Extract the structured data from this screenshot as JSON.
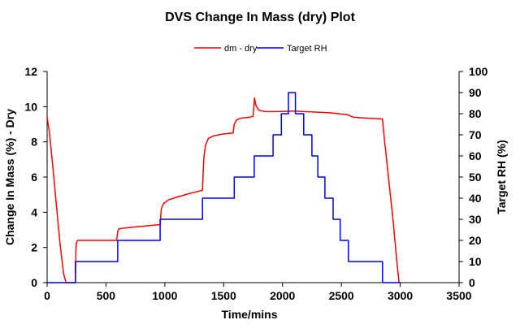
{
  "chart_data": {
    "type": "line",
    "title": "DVS Change In Mass (dry) Plot",
    "xlabel": "Time/mins",
    "ylabel_left": "Change In Mass (%) - Dry",
    "ylabel_right": "Target RH (%)",
    "xlim": [
      0,
      3500
    ],
    "ylim_left": [
      0,
      12
    ],
    "ylim_right": [
      0,
      100
    ],
    "x_ticks": [
      0,
      500,
      1000,
      1500,
      2000,
      2500,
      3000,
      3500
    ],
    "y_left_ticks": [
      0,
      2,
      4,
      6,
      8,
      10,
      12
    ],
    "y_right_ticks": [
      0,
      10,
      20,
      30,
      40,
      50,
      60,
      70,
      80,
      90,
      100
    ],
    "grid": false,
    "legend_position": "top-center",
    "series": [
      {
        "name": "dm - dry",
        "axis": "left",
        "color": "#ff0000",
        "points": [
          [
            0,
            9.4
          ],
          [
            20,
            8.5
          ],
          [
            50,
            6.5
          ],
          [
            80,
            4.3
          ],
          [
            110,
            2.2
          ],
          [
            140,
            0.5
          ],
          [
            160,
            0.0
          ],
          [
            240,
            0.0
          ],
          [
            245,
            1.9
          ],
          [
            250,
            2.3
          ],
          [
            260,
            2.4
          ],
          [
            400,
            2.4
          ],
          [
            590,
            2.4
          ],
          [
            600,
            2.9
          ],
          [
            610,
            3.05
          ],
          [
            650,
            3.1
          ],
          [
            800,
            3.2
          ],
          [
            960,
            3.3
          ],
          [
            970,
            4.2
          ],
          [
            990,
            4.5
          ],
          [
            1030,
            4.7
          ],
          [
            1100,
            4.85
          ],
          [
            1200,
            5.05
          ],
          [
            1320,
            5.25
          ],
          [
            1330,
            7.0
          ],
          [
            1345,
            7.8
          ],
          [
            1370,
            8.2
          ],
          [
            1420,
            8.35
          ],
          [
            1500,
            8.45
          ],
          [
            1580,
            8.5
          ],
          [
            1590,
            9.0
          ],
          [
            1610,
            9.25
          ],
          [
            1650,
            9.35
          ],
          [
            1720,
            9.4
          ],
          [
            1750,
            9.45
          ],
          [
            1762,
            10.5
          ],
          [
            1775,
            10.05
          ],
          [
            1800,
            9.8
          ],
          [
            1850,
            9.72
          ],
          [
            1950,
            9.72
          ],
          [
            2100,
            9.75
          ],
          [
            2250,
            9.7
          ],
          [
            2400,
            9.65
          ],
          [
            2550,
            9.55
          ],
          [
            2600,
            9.4
          ],
          [
            2700,
            9.35
          ],
          [
            2850,
            9.3
          ],
          [
            2860,
            8.5
          ],
          [
            2900,
            6.0
          ],
          [
            2940,
            3.5
          ],
          [
            2970,
            1.3
          ],
          [
            2990,
            0.0
          ],
          [
            3000,
            0.0
          ]
        ]
      },
      {
        "name": "Target RH",
        "axis": "right",
        "color": "#0000ff",
        "points": [
          [
            0,
            0
          ],
          [
            240,
            0
          ],
          [
            240,
            10
          ],
          [
            600,
            10
          ],
          [
            600,
            20
          ],
          [
            960,
            20
          ],
          [
            960,
            30
          ],
          [
            1320,
            30
          ],
          [
            1320,
            40
          ],
          [
            1590,
            40
          ],
          [
            1590,
            50
          ],
          [
            1760,
            50
          ],
          [
            1760,
            60
          ],
          [
            1920,
            60
          ],
          [
            1920,
            70
          ],
          [
            1990,
            70
          ],
          [
            1990,
            80
          ],
          [
            2050,
            80
          ],
          [
            2050,
            90
          ],
          [
            2110,
            90
          ],
          [
            2110,
            80
          ],
          [
            2180,
            80
          ],
          [
            2180,
            70
          ],
          [
            2250,
            70
          ],
          [
            2250,
            60
          ],
          [
            2300,
            60
          ],
          [
            2300,
            50
          ],
          [
            2360,
            50
          ],
          [
            2360,
            40
          ],
          [
            2430,
            40
          ],
          [
            2430,
            30
          ],
          [
            2490,
            30
          ],
          [
            2490,
            20
          ],
          [
            2560,
            20
          ],
          [
            2560,
            10
          ],
          [
            2850,
            10
          ],
          [
            2850,
            0
          ],
          [
            3000,
            0
          ]
        ]
      }
    ]
  }
}
